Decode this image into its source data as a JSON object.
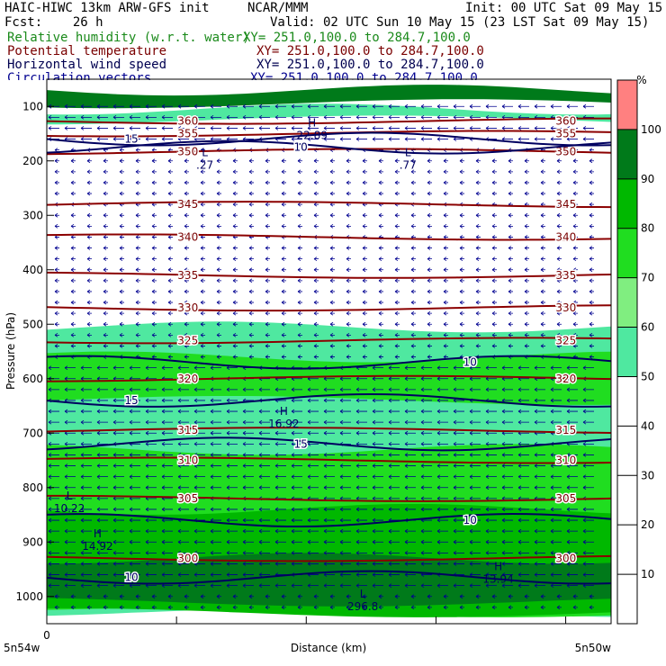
{
  "header": {
    "model": "HAIC-HIWC 13km ARW-GFS init",
    "center": "NCAR/MMM",
    "init": "Init: 00 UTC Sat 09 May 15",
    "fcst": "Fcst:    26 h",
    "valid": "Valid: 02 UTC Sun 10 May 15 (23 LST Sat 09 May 15)",
    "fields": [
      {
        "label": "Relative humidity (w.r.t. water)",
        "xy": "XY= 251.0,100.0 to 284.7,100.0",
        "color": "#1a8a1a"
      },
      {
        "label": "Potential temperature",
        "xy": "XY= 251.0,100.0 to 284.7,100.0",
        "color": "#7a0000"
      },
      {
        "label": "Horizontal wind speed",
        "xy": "XY= 251.0,100.0 to 284.7,100.0",
        "color": "#000050"
      },
      {
        "label": "Circulation vectors",
        "xy": "XY= 251.0,100.0 to 284.7,100.0",
        "color": "#000090"
      }
    ]
  },
  "chart_data": {
    "type": "heatmap",
    "xlabel": "Distance (km)",
    "ylabel": "Pressure (hPa)",
    "x_tick_labels": {
      "origin": "0",
      "left": "5n54w",
      "right": "5n50w"
    },
    "y_ticks": [
      100,
      200,
      300,
      400,
      500,
      600,
      700,
      800,
      900,
      1000
    ],
    "ylim": [
      1050,
      50
    ],
    "colorbar": {
      "unit": "%",
      "ticks": [
        10,
        20,
        30,
        40,
        50,
        60,
        70,
        80,
        90,
        100
      ],
      "bins": [
        {
          "from": 0,
          "to": 50,
          "color": "#ffffff"
        },
        {
          "from": 50,
          "to": 60,
          "color": "#4fe8a0"
        },
        {
          "from": 60,
          "to": 70,
          "color": "#80ee80"
        },
        {
          "from": 70,
          "to": 80,
          "color": "#20dd20"
        },
        {
          "from": 80,
          "to": 90,
          "color": "#00b800"
        },
        {
          "from": 90,
          "to": 100,
          "color": "#007a1a"
        },
        {
          "from": 100,
          "to": 110,
          "color": "#ff8080"
        }
      ]
    },
    "rh_regions": [
      {
        "min": 90,
        "p_from": 70,
        "p_to": 95
      },
      {
        "min": 50,
        "p_from": 105,
        "p_to": 125
      },
      {
        "min": 50,
        "p_from": 505,
        "p_to": 1030
      },
      {
        "min": 70,
        "p_from": 560,
        "p_to": 640
      },
      {
        "min": 70,
        "p_from": 730,
        "p_to": 1030
      },
      {
        "min": 80,
        "p_from": 840,
        "p_to": 1030
      },
      {
        "min": 90,
        "p_from": 930,
        "p_to": 1010
      }
    ],
    "theta_contours": [
      {
        "value": 360,
        "p": 127
      },
      {
        "value": 355,
        "p": 150
      },
      {
        "value": 350,
        "p": 183
      },
      {
        "value": 345,
        "p": 280
      },
      {
        "value": 340,
        "p": 340
      },
      {
        "value": 335,
        "p": 410
      },
      {
        "value": 330,
        "p": 470
      },
      {
        "value": 325,
        "p": 530
      },
      {
        "value": 320,
        "p": 600
      },
      {
        "value": 315,
        "p": 695
      },
      {
        "value": 310,
        "p": 750
      },
      {
        "value": 305,
        "p": 820
      },
      {
        "value": 300,
        "p": 930
      }
    ],
    "wind_contours": [
      {
        "value": 15,
        "p": 160
      },
      {
        "value": 10,
        "p": 175
      },
      {
        "value": 10,
        "p": 570
      },
      {
        "value": 15,
        "p": 640
      },
      {
        "value": 15,
        "p": 720
      },
      {
        "value": 10,
        "p": 860
      },
      {
        "value": 10,
        "p": 965
      }
    ],
    "extrema": [
      {
        "label": "H",
        "value": "22.89",
        "p": 140,
        "frac": 0.47
      },
      {
        "label": "L",
        "value": ".27",
        "p": 195,
        "frac": 0.28
      },
      {
        "label": "L",
        "value": ".77",
        "p": 195,
        "frac": 0.64
      },
      {
        "label": "H",
        "value": "16.92",
        "p": 670,
        "frac": 0.42
      },
      {
        "label": "L",
        "value": "10.22",
        "p": 825,
        "frac": 0.04
      },
      {
        "label": "H",
        "value": "14.92",
        "p": 895,
        "frac": 0.09
      },
      {
        "label": "H",
        "value": "13.94",
        "p": 955,
        "frac": 0.8
      },
      {
        "label": "L",
        "value": "296.8",
        "p": 1005,
        "frac": 0.56
      }
    ],
    "vector_direction": "easterly",
    "grid": false,
    "legend": "colorbar right"
  }
}
